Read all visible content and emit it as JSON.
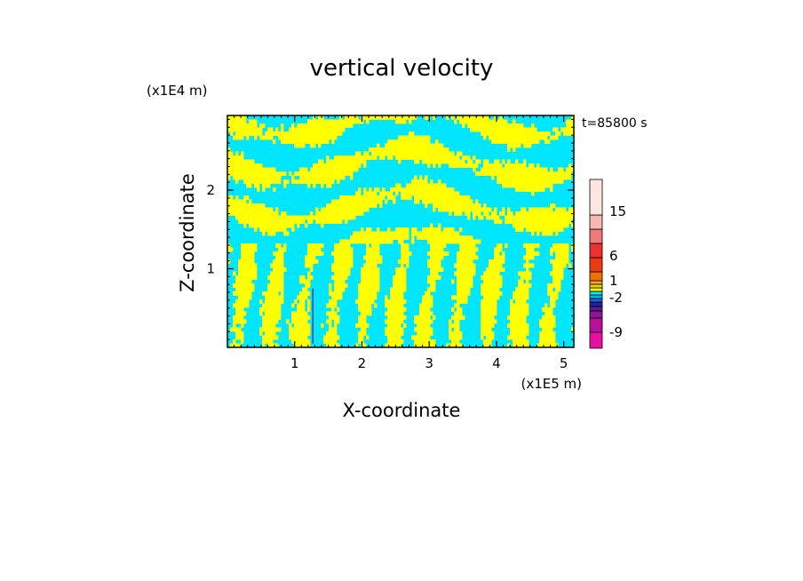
{
  "chart_data": {
    "type": "heatmap",
    "title": "vertical velocity",
    "xlabel": "X-coordinate",
    "ylabel": "Z-coordinate",
    "x_unit": "(x1E5 m)",
    "y_unit": "(x1E4 m)",
    "time_label": "t=85800 s",
    "xlim": [
      0,
      5.15
    ],
    "ylim": [
      0,
      2.95
    ],
    "x_ticks": [
      1,
      2,
      3,
      4,
      5
    ],
    "y_ticks": [
      1,
      2
    ],
    "x_tick_labels": [
      "1",
      "2",
      "3",
      "4",
      "5"
    ],
    "y_tick_labels": [
      "1",
      "2"
    ],
    "colorbar": {
      "levels": [
        {
          "color": "#e8119f"
        },
        {
          "color": "#b8109a"
        },
        {
          "color": "#8d1694"
        },
        {
          "color": "#5a1a93"
        },
        {
          "color": "#2222a8"
        },
        {
          "color": "#1f5fd8"
        },
        {
          "color": "#00b6f0"
        },
        {
          "color": "#00e8f0"
        },
        {
          "color": "#f7f700"
        },
        {
          "color": "#f0d400"
        },
        {
          "color": "#f5a800"
        },
        {
          "color": "#f07000"
        },
        {
          "color": "#ee3a12"
        },
        {
          "color": "#f03030"
        },
        {
          "color": "#f07a7a"
        },
        {
          "color": "#f6b8b0"
        },
        {
          "color": "#fde6de"
        }
      ],
      "tick_labels": [
        "15",
        "6",
        "1",
        "-2",
        "-9"
      ]
    },
    "dominant_colors": {
      "positive_small": "#ffff00",
      "negative_small": "#00e6ff"
    }
  }
}
